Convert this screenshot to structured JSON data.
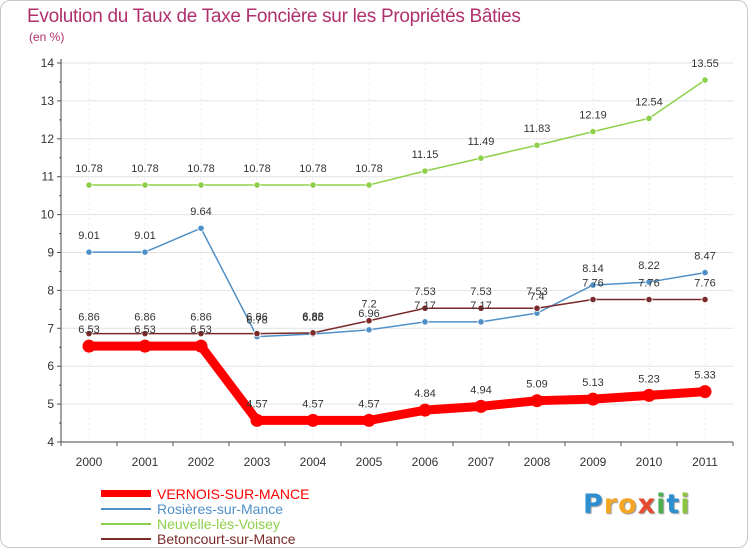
{
  "title": "Evolution du Taux de Taxe Foncière sur les Propriétés Bâties",
  "unit": "(en %)",
  "chart_data": {
    "type": "line",
    "x": [
      "2000",
      "2001",
      "2002",
      "2003",
      "2004",
      "2005",
      "2006",
      "2007",
      "2008",
      "2009",
      "2010",
      "2011"
    ],
    "ylim": [
      4,
      14
    ],
    "yticks": [
      "4",
      "5",
      "6",
      "7",
      "8",
      "9",
      "10",
      "11",
      "12",
      "13",
      "14"
    ],
    "series": [
      {
        "name": "VERNOIS-SUR-MANCE",
        "color": "#ff0000",
        "values": [
          6.53,
          6.53,
          6.53,
          4.57,
          4.57,
          4.57,
          4.84,
          4.94,
          5.09,
          5.13,
          5.23,
          5.33
        ],
        "labels": [
          "6.53",
          "6.53",
          "6.53",
          "4.57",
          "4.57",
          "4.57",
          "4.84",
          "4.94",
          "5.09",
          "5.13",
          "5.23",
          "5.33"
        ]
      },
      {
        "name": "Rosières-sur-Mance",
        "color": "#4f90c8",
        "values": [
          9.01,
          9.01,
          9.64,
          6.78,
          6.85,
          6.96,
          7.17,
          7.17,
          7.4,
          8.14,
          8.22,
          8.47
        ],
        "labels": [
          "9.01",
          "9.01",
          "9.64",
          "6.78",
          "6.85",
          "6.96",
          "7.17",
          "7.17",
          "7.4",
          "8.14",
          "8.22",
          "8.47"
        ]
      },
      {
        "name": "Neuvelle-lès-Voisey",
        "color": "#8ed04a",
        "values": [
          10.78,
          10.78,
          10.78,
          10.78,
          10.78,
          10.78,
          11.15,
          11.49,
          11.83,
          12.19,
          12.54,
          13.55
        ],
        "labels": [
          "10.78",
          "10.78",
          "10.78",
          "10.78",
          "10.78",
          "10.78",
          "11.15",
          "11.49",
          "11.83",
          "12.19",
          "12.54",
          "13.55"
        ]
      },
      {
        "name": "Betoncourt-sur-Mance",
        "color": "#7a2a2a",
        "values": [
          6.86,
          6.86,
          6.86,
          6.86,
          6.88,
          7.2,
          7.53,
          7.53,
          7.53,
          7.76,
          7.76,
          7.76
        ],
        "labels": [
          "6.86",
          "6.86",
          "6.86",
          "6.86",
          "6.88",
          "7.2",
          "7.53",
          "7.53",
          "7.53",
          "7.76",
          "7.76",
          "7.76"
        ]
      }
    ]
  },
  "logo": {
    "letters": [
      "P",
      "r",
      "o",
      "x",
      "i",
      "t",
      "i"
    ],
    "colors": [
      "#2c8fd0",
      "#f5a623",
      "#f5a623",
      "#e64a2e",
      "#4cae4c",
      "#2c8fd0",
      "#8cc63f"
    ]
  }
}
